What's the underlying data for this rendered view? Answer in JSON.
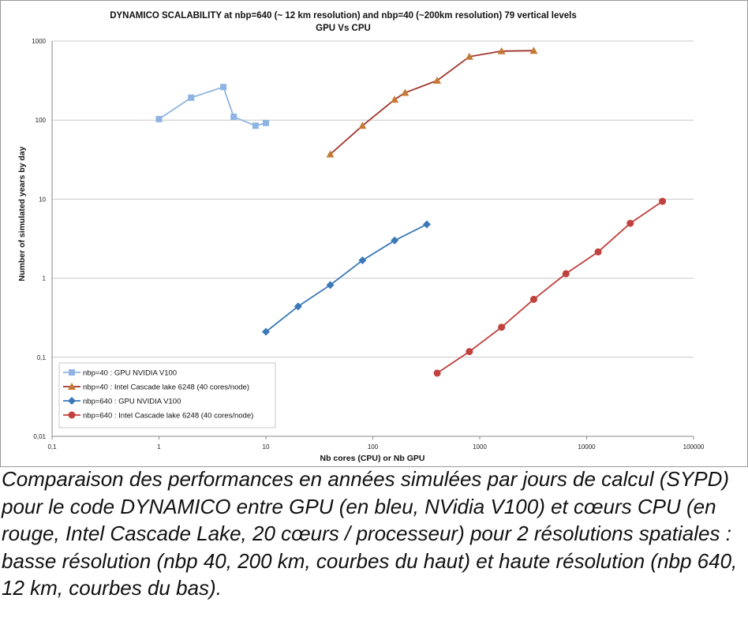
{
  "chart_data": {
    "type": "line",
    "title": "DYNAMICO SCALABILITY at nbp=640 (~ 12 km resolution) and nbp=40 (~200km resolution)  79 vertical levels",
    "subtitle": "GPU Vs CPU",
    "xlabel": "Nb cores (CPU) or Nb GPU",
    "ylabel": "Number of simulated years by day",
    "xscale": "log",
    "yscale": "log",
    "xlim": [
      0.1,
      100000
    ],
    "ylim": [
      0.01,
      1000
    ],
    "xticks": [
      "0,1",
      "1",
      "10",
      "100",
      "1000",
      "10000",
      "100000"
    ],
    "yticks": [
      "0,01",
      "0,1",
      "1",
      "10",
      "100",
      "1000"
    ],
    "grid": "horizontal",
    "legend_position": "bottom-left",
    "series": [
      {
        "name": "nbp=40 : GPU NVIDIA V100",
        "color": "#8fb4e3",
        "marker": "square",
        "x": [
          1,
          2,
          4,
          5,
          8,
          10
        ],
        "y": [
          103,
          192,
          262,
          110,
          85,
          92
        ]
      },
      {
        "name": "nbp=40 : Intel Cascade lake 6248 (40 cores/node)",
        "color": "#a0332b",
        "marker_color": "#c47a36",
        "marker": "triangle",
        "x": [
          40,
          80,
          160,
          200,
          400,
          800,
          1600,
          3200
        ],
        "y": [
          37,
          85,
          182,
          222,
          316,
          635,
          745,
          755
        ]
      },
      {
        "name": "nbp=640 : GPU NVIDIA V100",
        "color": "#3a78b8",
        "marker": "diamond",
        "x": [
          10,
          20,
          40,
          80,
          160,
          320
        ],
        "y": [
          0.21,
          0.44,
          0.82,
          1.68,
          3.0,
          4.8
        ]
      },
      {
        "name": "nbp=640 : Intel Cascade lake 6248 (40 cores/node)",
        "color": "#c0413d",
        "marker": "circle",
        "x": [
          400,
          800,
          1600,
          3200,
          6400,
          12800,
          25600,
          51200
        ],
        "y": [
          0.063,
          0.118,
          0.24,
          0.54,
          1.14,
          2.15,
          4.95,
          9.4
        ]
      }
    ]
  },
  "caption": "Comparaison des performances en années simulées par jours de calcul (SYPD) pour le code DYNAMICO entre GPU (en bleu, NVidia V100) et cœurs CPU (en rouge, Intel Cascade Lake, 20 cœurs / processeur) pour 2 résolutions spatiales : basse résolution (nbp 40, 200 km, courbes du haut) et haute résolution (nbp 640, 12 km, courbes du bas)."
}
